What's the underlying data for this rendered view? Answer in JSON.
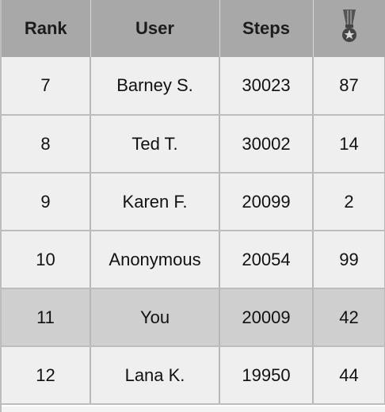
{
  "headers": {
    "rank": "Rank",
    "user": "User",
    "steps": "Steps",
    "medal_icon": "medal-icon"
  },
  "rows": [
    {
      "rank": "7",
      "user": "Barney S.",
      "steps": "30023",
      "medals": "87",
      "highlight": false
    },
    {
      "rank": "8",
      "user": "Ted T.",
      "steps": "30002",
      "medals": "14",
      "highlight": false
    },
    {
      "rank": "9",
      "user": "Karen F.",
      "steps": "20099",
      "medals": "2",
      "highlight": false
    },
    {
      "rank": "10",
      "user": "Anonymous",
      "steps": "20054",
      "medals": "99",
      "highlight": false
    },
    {
      "rank": "11",
      "user": "You",
      "steps": "20009",
      "medals": "42",
      "highlight": true
    },
    {
      "rank": "12",
      "user": "Lana K.",
      "steps": "19950",
      "medals": "44",
      "highlight": false
    }
  ],
  "colors": {
    "header_bg": "#a8a8a8",
    "row_bg": "#efefef",
    "highlight_bg": "#cfcfcf"
  }
}
